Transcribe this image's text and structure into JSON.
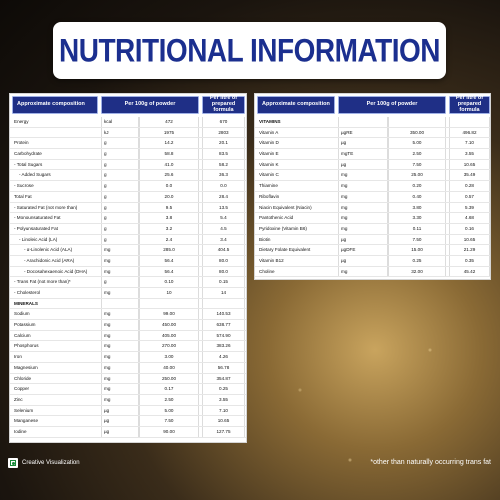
{
  "title": "NUTRITIONAL INFORMATION",
  "left_table": {
    "headers": [
      "Approximate composition",
      "Per 100g of powder",
      "Per litre of prepared formula"
    ],
    "rows": [
      {
        "name": "Energy",
        "unit": "kcal",
        "powder": "472",
        "litre": "670",
        "indent": 0
      },
      {
        "name": "",
        "unit": "kJ",
        "powder": "1975",
        "litre": "2803",
        "indent": 0
      },
      {
        "name": "Protein",
        "unit": "g",
        "powder": "14.2",
        "litre": "20.1",
        "indent": 0
      },
      {
        "name": "Carbohydrate",
        "unit": "g",
        "powder": "58.8",
        "litre": "83.5",
        "indent": 0
      },
      {
        "name": "- Total Sugars",
        "unit": "g",
        "powder": "41.0",
        "litre": "58.2",
        "indent": 0
      },
      {
        "name": "- Added Sugars",
        "unit": "g",
        "powder": "25.6",
        "litre": "36.3",
        "indent": 1
      },
      {
        "name": "- Sucrose",
        "unit": "g",
        "powder": "0.0",
        "litre": "0.0",
        "indent": 0
      },
      {
        "name": "Total Fat",
        "unit": "g",
        "powder": "20.0",
        "litre": "28.4",
        "indent": 0
      },
      {
        "name": "- Saturated Fat (not more than)",
        "unit": "g",
        "powder": "9.5",
        "litre": "13.5",
        "indent": 0
      },
      {
        "name": "- Monounsaturated Fat",
        "unit": "g",
        "powder": "3.8",
        "litre": "5.4",
        "indent": 0
      },
      {
        "name": "- Polyunsaturated Fat",
        "unit": "g",
        "powder": "3.2",
        "litre": "4.5",
        "indent": 0
      },
      {
        "name": "- Linoleic Acid (LA)",
        "unit": "g",
        "powder": "2.4",
        "litre": "3.4",
        "indent": 1
      },
      {
        "name": "- α-Linolenic Acid (ALA)",
        "unit": "mg",
        "powder": "285.0",
        "litre": "404.5",
        "indent": 2
      },
      {
        "name": "- Arachidonic Acid (ARA)",
        "unit": "mg",
        "powder": "56.4",
        "litre": "80.0",
        "indent": 2
      },
      {
        "name": "- Docosahexaenoic Acid (DHA)",
        "unit": "mg",
        "powder": "56.4",
        "litre": "80.0",
        "indent": 2
      },
      {
        "name": "- Trans Fat (not more than)*",
        "unit": "g",
        "powder": "0.10",
        "litre": "0.15",
        "indent": 0
      },
      {
        "name": "- Cholesterol",
        "unit": "mg",
        "powder": "10",
        "litre": "14",
        "indent": 0
      },
      {
        "name": "MINERALS",
        "unit": "",
        "powder": "",
        "litre": "",
        "indent": 0,
        "bold": true
      },
      {
        "name": "Sodium",
        "unit": "mg",
        "powder": "99.00",
        "litre": "140.53",
        "indent": 0
      },
      {
        "name": "Potassium",
        "unit": "mg",
        "powder": "450.00",
        "litre": "638.77",
        "indent": 0
      },
      {
        "name": "Calcium",
        "unit": "mg",
        "powder": "405.00",
        "litre": "574.90",
        "indent": 0
      },
      {
        "name": "Phosphorus",
        "unit": "mg",
        "powder": "270.00",
        "litre": "383.26",
        "indent": 0
      },
      {
        "name": "Iron",
        "unit": "mg",
        "powder": "3.00",
        "litre": "4.26",
        "indent": 0
      },
      {
        "name": "Magnesium",
        "unit": "mg",
        "powder": "40.00",
        "litre": "56.78",
        "indent": 0
      },
      {
        "name": "Chloride",
        "unit": "mg",
        "powder": "250.00",
        "litre": "354.87",
        "indent": 0
      },
      {
        "name": "Copper",
        "unit": "mg",
        "powder": "0.17",
        "litre": "0.25",
        "indent": 0
      },
      {
        "name": "Zinc",
        "unit": "mg",
        "powder": "2.50",
        "litre": "3.55",
        "indent": 0
      },
      {
        "name": "Selenium",
        "unit": "µg",
        "powder": "5.00",
        "litre": "7.10",
        "indent": 0
      },
      {
        "name": "Manganese",
        "unit": "µg",
        "powder": "7.50",
        "litre": "10.65",
        "indent": 0
      },
      {
        "name": "Iodine",
        "unit": "µg",
        "powder": "90.00",
        "litre": "127.75",
        "indent": 0
      }
    ]
  },
  "right_table": {
    "headers": [
      "Approximate composition",
      "Per 100g of powder",
      "Per litre of prepared formula"
    ],
    "rows": [
      {
        "name": "VITAMINS",
        "unit": "",
        "powder": "",
        "litre": "",
        "bold": true
      },
      {
        "name": "Vitamin A",
        "unit": "µgRE",
        "powder": "350.00",
        "litre": "496.82"
      },
      {
        "name": "Vitamin D",
        "unit": "µg",
        "powder": "5.00",
        "litre": "7.10"
      },
      {
        "name": "Vitamin E",
        "unit": "mgTE",
        "powder": "2.50",
        "litre": "3.55"
      },
      {
        "name": "Vitamin K",
        "unit": "µg",
        "powder": "7.50",
        "litre": "10.65"
      },
      {
        "name": "Vitamin C",
        "unit": "mg",
        "powder": "25.00",
        "litre": "35.49"
      },
      {
        "name": "Thiamine",
        "unit": "mg",
        "powder": "0.20",
        "litre": "0.28"
      },
      {
        "name": "Riboflavin",
        "unit": "mg",
        "powder": "0.40",
        "litre": "0.57"
      },
      {
        "name": "Niacin Equivalent (Niacin)",
        "unit": "mg",
        "powder": "3.80",
        "litre": "5.39"
      },
      {
        "name": "Pantothenic Acid",
        "unit": "mg",
        "powder": "3.30",
        "litre": "4.68"
      },
      {
        "name": "Pyridoxine (Vitamin B6)",
        "unit": "mg",
        "powder": "0.11",
        "litre": "0.16"
      },
      {
        "name": "Biotin",
        "unit": "µg",
        "powder": "7.50",
        "litre": "10.65"
      },
      {
        "name": "Dietary Folate Equivalent",
        "unit": "µgDFE",
        "powder": "15.00",
        "litre": "21.29"
      },
      {
        "name": "Vitamin B12",
        "unit": "µg",
        "powder": "0.25",
        "litre": "0.35"
      },
      {
        "name": "Choline",
        "unit": "mg",
        "powder": "32.00",
        "litre": "45.42"
      }
    ]
  },
  "footer": {
    "brand": "Creative Visualization",
    "note": "*other than naturally occurring trans fat",
    "logo_icon": "veg-mark-icon",
    "logo_color": "#1a8a3a"
  },
  "colors": {
    "header_bg": "#1f2f86",
    "title": "#1b2f8f"
  }
}
